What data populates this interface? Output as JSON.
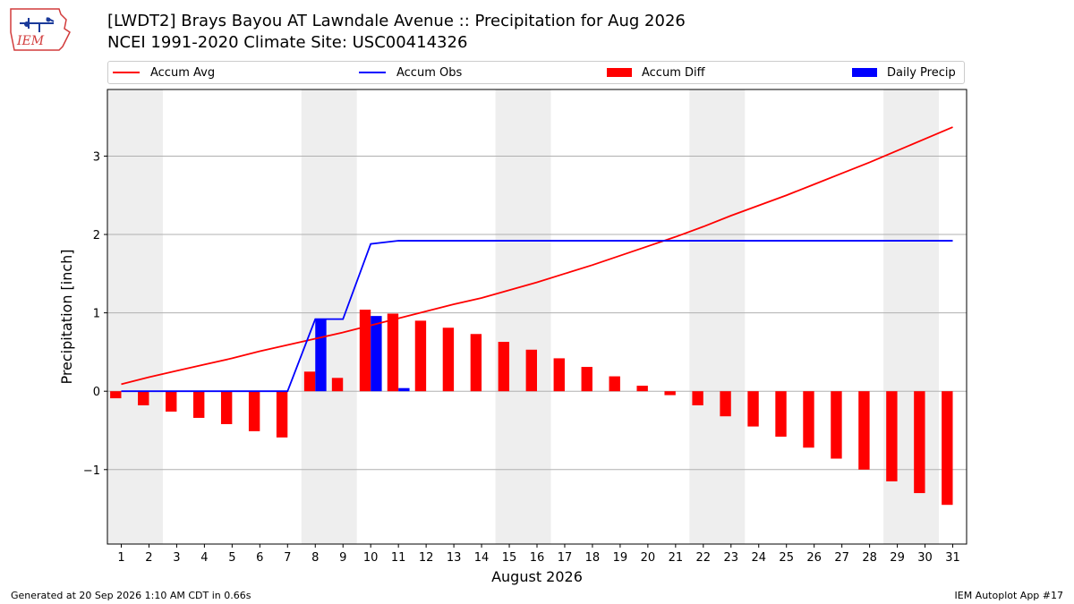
{
  "header": {
    "title_line1": "[LWDT2] Brays Bayou  AT Lawndale Avenue :: Precipitation for Aug 2026",
    "title_line2": "NCEI 1991-2020 Climate Site: USC00414326",
    "logo_text": "IEM"
  },
  "footer": {
    "generated": "Generated at 20 Sep 2026 1:10 AM CDT in 0.66s",
    "app": "IEM Autoplot App #17"
  },
  "colors": {
    "accum_avg": "#ff0000",
    "accum_obs": "#0000ff",
    "accum_diff": "#ff0000",
    "daily_precip": "#0000ff",
    "weekend_band": "#eeeeee",
    "grid": "#b0b0b0"
  },
  "chart_data": {
    "type": "bar",
    "xlabel": "August 2026",
    "ylabel": "Precipitation [inch]",
    "ylim": [
      -1.95,
      3.85
    ],
    "xlim": [
      0.5,
      31.5
    ],
    "yticks": [
      -1,
      0,
      1,
      2,
      3
    ],
    "ytick_labels": [
      "−1",
      "0",
      "1",
      "2",
      "3"
    ],
    "grid": "horizontal",
    "legend_position": "top",
    "shaded_day_ranges": [
      [
        0.5,
        2.5
      ],
      [
        7.5,
        9.5
      ],
      [
        14.5,
        16.5
      ],
      [
        21.5,
        23.5
      ],
      [
        28.5,
        30.5
      ]
    ],
    "categories": [
      1,
      2,
      3,
      4,
      5,
      6,
      7,
      8,
      9,
      10,
      11,
      12,
      13,
      14,
      15,
      16,
      17,
      18,
      19,
      20,
      21,
      22,
      23,
      24,
      25,
      26,
      27,
      28,
      29,
      30,
      31
    ],
    "series": [
      {
        "name": "Accum Avg",
        "kind": "line",
        "values": [
          0.09,
          0.18,
          0.26,
          0.34,
          0.42,
          0.51,
          0.59,
          0.67,
          0.75,
          0.84,
          0.93,
          1.02,
          1.11,
          1.19,
          1.29,
          1.39,
          1.5,
          1.61,
          1.73,
          1.85,
          1.97,
          2.1,
          2.24,
          2.37,
          2.5,
          2.64,
          2.78,
          2.92,
          3.07,
          3.22,
          3.37
        ]
      },
      {
        "name": "Accum Obs",
        "kind": "line",
        "values": [
          0,
          0,
          0,
          0,
          0,
          0,
          0,
          0.92,
          0.92,
          1.88,
          1.92,
          1.92,
          1.92,
          1.92,
          1.92,
          1.92,
          1.92,
          1.92,
          1.92,
          1.92,
          1.92,
          1.92,
          1.92,
          1.92,
          1.92,
          1.92,
          1.92,
          1.92,
          1.92,
          1.92,
          1.92
        ]
      },
      {
        "name": "Accum Diff",
        "kind": "bar",
        "values": [
          -0.09,
          -0.18,
          -0.26,
          -0.34,
          -0.42,
          -0.51,
          -0.59,
          0.25,
          0.17,
          1.04,
          0.99,
          0.9,
          0.81,
          0.73,
          0.63,
          0.53,
          0.42,
          0.31,
          0.19,
          0.07,
          -0.05,
          -0.18,
          -0.32,
          -0.45,
          -0.58,
          -0.72,
          -0.86,
          -1.0,
          -1.15,
          -1.3,
          -1.45
        ]
      },
      {
        "name": "Daily Precip",
        "kind": "bar",
        "values": [
          0,
          0,
          0,
          0,
          0,
          0,
          0,
          0.92,
          0,
          0.96,
          0.04,
          0,
          0,
          0,
          0,
          0,
          0,
          0,
          0,
          0,
          0,
          0,
          0,
          0,
          0,
          0,
          0,
          0,
          0,
          0,
          0
        ]
      }
    ]
  }
}
